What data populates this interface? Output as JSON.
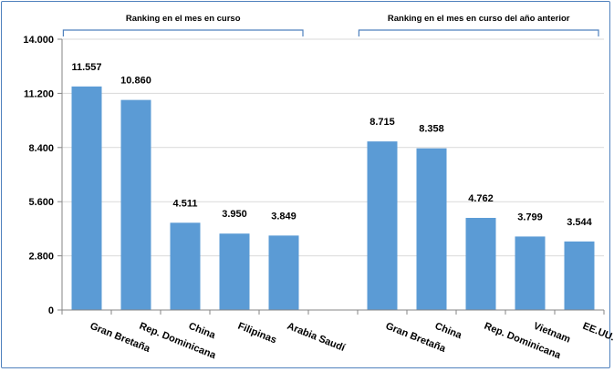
{
  "chart_data": {
    "type": "bar",
    "ylim": [
      0,
      14000
    ],
    "y_ticks": [
      "0",
      "2.800",
      "5.600",
      "8.400",
      "11.200",
      "14.000"
    ],
    "y_tick_values": [
      0,
      2800,
      5600,
      8400,
      11200,
      14000
    ],
    "grid": true,
    "bar_color": "#5b9bd5",
    "bracket_color": "#4f81bd",
    "groups": [
      {
        "title": "Ranking en el mes en curso",
        "categories": [
          "Gran Bretaña",
          "Rep. Dominicana",
          "China",
          "Filipinas",
          "Arabia Saudí"
        ],
        "values": [
          11557,
          10860,
          4511,
          3950,
          3849
        ],
        "labels": [
          "11.557",
          "10.860",
          "4.511",
          "3.950",
          "3.849"
        ]
      },
      {
        "title": "Ranking en el mes en curso del año anterior",
        "categories": [
          "Gran Bretaña",
          "China",
          "Rep. Dominicana",
          "Vietnam",
          "EE.UU."
        ],
        "values": [
          8715,
          8358,
          4762,
          3799,
          3544
        ],
        "labels": [
          "8.715",
          "8.358",
          "4.762",
          "3.799",
          "3.544"
        ]
      }
    ]
  }
}
